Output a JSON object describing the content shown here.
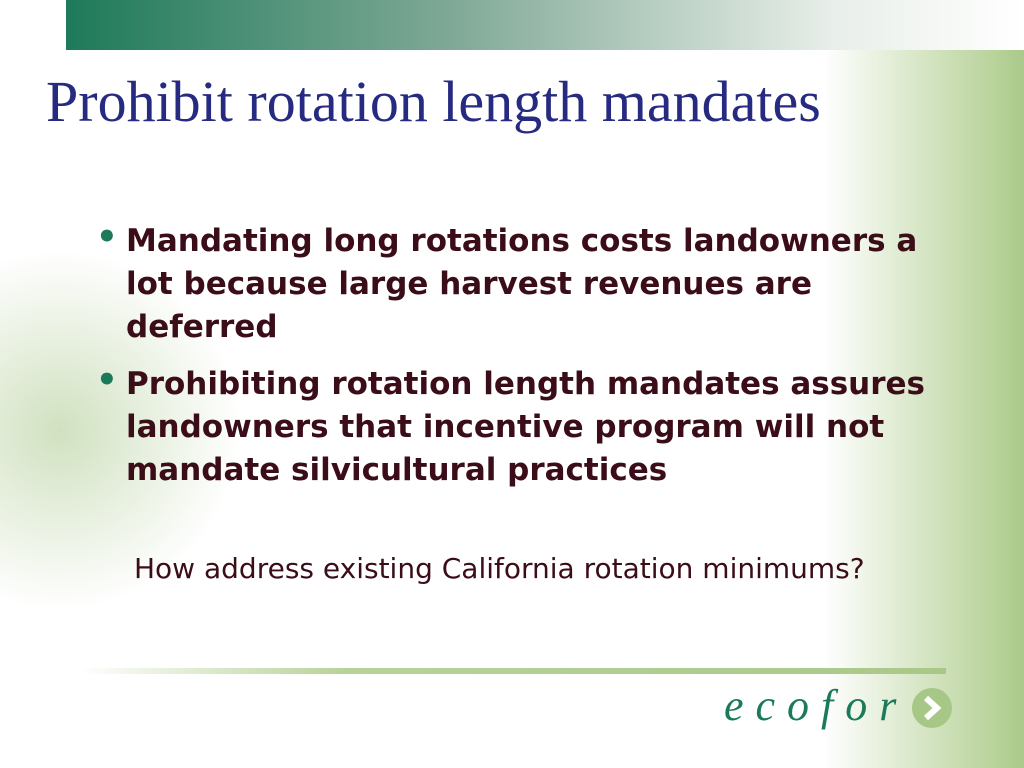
{
  "slide": {
    "title": "Prohibit rotation length mandates",
    "bullets": [
      "Mandating long rotations costs landowners a lot because large harvest revenues are deferred",
      "Prohibiting rotation length mandates assures landowners that incentive program will not mandate silvicultural practices"
    ],
    "subnote": "How address existing California rotation minimums?",
    "bullet_glyph": "•"
  },
  "logo": {
    "text": "ecofor",
    "icon": "chevron-right-icon"
  },
  "colors": {
    "title": "#262a80",
    "body": "#3a0d18",
    "accent": "#1a7a5a",
    "green": "#a6c785"
  }
}
